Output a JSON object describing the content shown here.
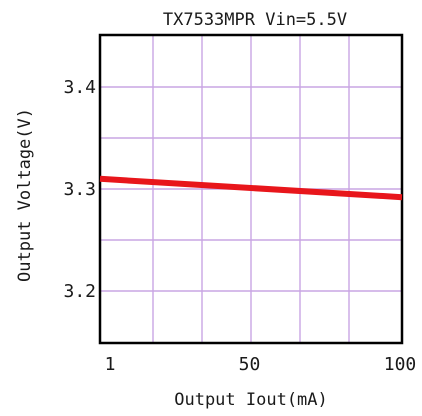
{
  "chart_data": {
    "type": "line",
    "title": "TX7533MPR Vin=5.5V",
    "xlabel": "Output Iout(mA)",
    "ylabel": "Output Voltage(V)",
    "xlim": [
      1,
      100
    ],
    "ylim": [
      3.15,
      3.45
    ],
    "x_ticks": [
      1,
      50,
      100
    ],
    "x_tick_labels": [
      "1",
      "50",
      "100"
    ],
    "y_ticks": [
      3.2,
      3.3,
      3.4
    ],
    "y_tick_labels": [
      "3.2",
      "3.3",
      "3.4"
    ],
    "grid": true,
    "grid_color": "#c9a6e3",
    "series": [
      {
        "color": "#e8161b",
        "x": [
          1,
          100
        ],
        "y": [
          3.31,
          3.292
        ]
      }
    ]
  }
}
